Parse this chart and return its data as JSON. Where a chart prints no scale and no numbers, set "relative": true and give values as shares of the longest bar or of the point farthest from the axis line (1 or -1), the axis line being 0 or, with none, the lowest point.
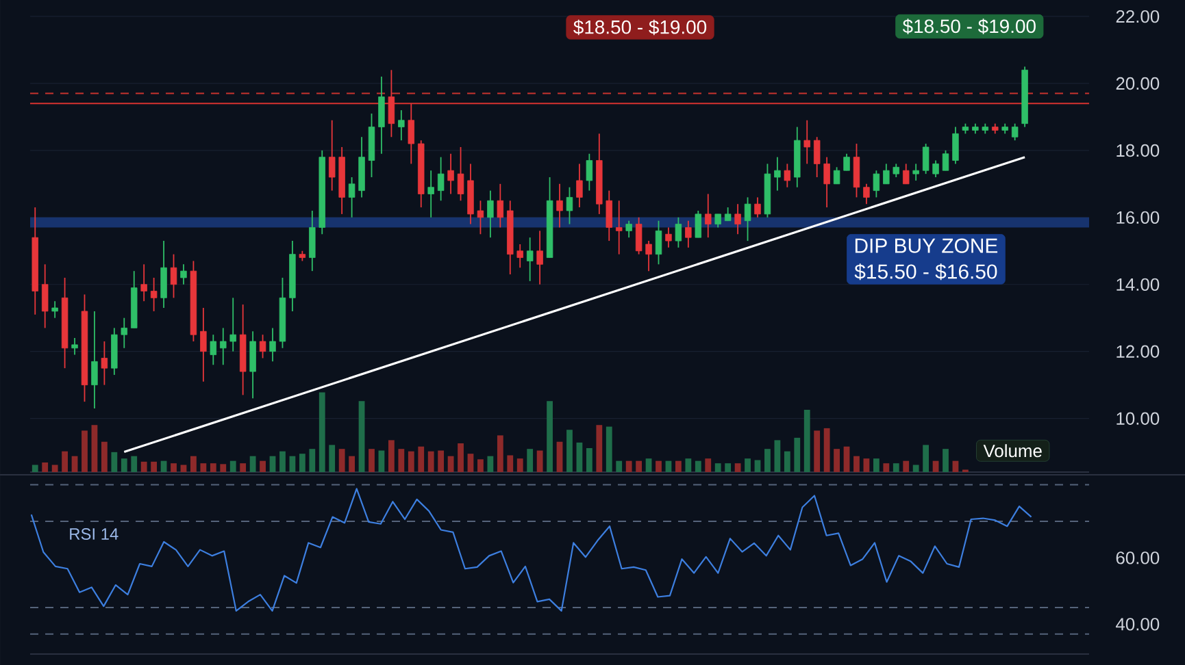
{
  "chart_data": [
    {
      "type": "candlestick",
      "categories": [
        null,
        null,
        null,
        null,
        null,
        null,
        null,
        null,
        null,
        null,
        null,
        null,
        null,
        null,
        null,
        null,
        null,
        null,
        null,
        null,
        null,
        null,
        null,
        null,
        null,
        null,
        null,
        null,
        null,
        null,
        null,
        null,
        null,
        null,
        null,
        null,
        null,
        null,
        null,
        null,
        null,
        null,
        null,
        null,
        null,
        null,
        null,
        null,
        null,
        null,
        null,
        null,
        null,
        null,
        null,
        null,
        null,
        null,
        null,
        null,
        null,
        null,
        null,
        null,
        null,
        null,
        null,
        null,
        null,
        null,
        null,
        null,
        null,
        null,
        null,
        null,
        null,
        null,
        null,
        null,
        null,
        null,
        null,
        null,
        null,
        null,
        null,
        null,
        null,
        null,
        null,
        null,
        null,
        null,
        null,
        null,
        null,
        null,
        null,
        null,
        null
      ],
      "ohlc": [
        [
          15.4,
          16.3,
          13.1,
          13.8
        ],
        [
          14.0,
          14.6,
          12.7,
          13.2
        ],
        [
          13.2,
          13.5,
          13.0,
          13.3
        ],
        [
          13.6,
          14.2,
          11.5,
          12.1
        ],
        [
          12.1,
          12.4,
          11.9,
          12.2
        ],
        [
          13.2,
          13.7,
          10.5,
          11.0
        ],
        [
          11.0,
          13.2,
          10.3,
          11.7
        ],
        [
          11.8,
          12.3,
          11.0,
          11.5
        ],
        [
          11.5,
          12.7,
          11.3,
          12.5
        ],
        [
          12.5,
          13.0,
          12.1,
          12.7
        ],
        [
          12.7,
          14.4,
          12.7,
          13.9
        ],
        [
          14.0,
          14.6,
          13.5,
          13.8
        ],
        [
          13.8,
          14.2,
          13.2,
          13.6
        ],
        [
          13.6,
          15.3,
          13.3,
          14.5
        ],
        [
          14.5,
          14.9,
          13.6,
          14.0
        ],
        [
          14.2,
          14.6,
          14.0,
          14.4
        ],
        [
          14.4,
          14.7,
          12.3,
          12.5
        ],
        [
          12.6,
          13.3,
          11.1,
          12.0
        ],
        [
          11.9,
          12.5,
          11.6,
          12.3
        ],
        [
          12.1,
          12.7,
          11.6,
          12.3
        ],
        [
          12.3,
          13.6,
          12.0,
          12.5
        ],
        [
          12.5,
          13.4,
          10.7,
          11.4
        ],
        [
          11.4,
          12.6,
          10.6,
          12.3
        ],
        [
          12.3,
          12.5,
          11.8,
          12.0
        ],
        [
          12.0,
          12.7,
          11.7,
          12.3
        ],
        [
          12.3,
          14.2,
          12.1,
          13.6
        ],
        [
          13.6,
          15.3,
          13.2,
          14.9
        ],
        [
          14.9,
          15.0,
          14.7,
          14.8
        ],
        [
          14.8,
          16.2,
          14.4,
          15.7
        ],
        [
          15.7,
          18.0,
          15.5,
          17.8
        ],
        [
          17.8,
          18.9,
          16.8,
          17.2
        ],
        [
          17.8,
          18.1,
          16.1,
          16.6
        ],
        [
          16.6,
          17.2,
          16.0,
          17.0
        ],
        [
          16.8,
          18.4,
          16.6,
          17.8
        ],
        [
          17.7,
          19.1,
          17.2,
          18.7
        ],
        [
          18.7,
          20.2,
          17.9,
          19.6
        ],
        [
          19.6,
          20.4,
          18.4,
          18.8
        ],
        [
          18.7,
          19.2,
          18.3,
          18.9
        ],
        [
          18.9,
          19.4,
          17.6,
          18.2
        ],
        [
          18.2,
          18.3,
          16.3,
          16.7
        ],
        [
          16.7,
          17.4,
          16.0,
          16.9
        ],
        [
          16.8,
          17.8,
          16.5,
          17.3
        ],
        [
          17.4,
          17.9,
          16.7,
          17.1
        ],
        [
          17.3,
          18.1,
          16.5,
          16.7
        ],
        [
          17.1,
          17.6,
          15.8,
          16.1
        ],
        [
          16.2,
          16.5,
          15.5,
          16.0
        ],
        [
          16.0,
          16.8,
          15.4,
          16.5
        ],
        [
          16.5,
          17.0,
          15.7,
          16.0
        ],
        [
          16.2,
          16.5,
          14.3,
          14.9
        ],
        [
          15.0,
          15.2,
          14.5,
          14.8
        ],
        [
          14.7,
          15.4,
          14.1,
          15.0
        ],
        [
          15.0,
          15.6,
          14.0,
          14.6
        ],
        [
          14.8,
          17.2,
          14.8,
          16.5
        ],
        [
          16.5,
          17.0,
          15.7,
          16.2
        ],
        [
          16.2,
          16.9,
          15.8,
          16.6
        ],
        [
          17.1,
          17.6,
          16.3,
          16.6
        ],
        [
          17.1,
          17.9,
          16.8,
          17.7
        ],
        [
          17.7,
          18.5,
          16.1,
          16.4
        ],
        [
          16.5,
          16.8,
          15.3,
          15.7
        ],
        [
          15.7,
          16.5,
          14.9,
          15.6
        ],
        [
          15.6,
          15.9,
          15.4,
          15.8
        ],
        [
          15.8,
          16.0,
          14.9,
          15.0
        ],
        [
          15.2,
          15.3,
          14.4,
          14.9
        ],
        [
          14.9,
          15.9,
          14.6,
          15.6
        ],
        [
          15.5,
          15.7,
          15.1,
          15.3
        ],
        [
          15.3,
          16.0,
          15.1,
          15.8
        ],
        [
          15.7,
          15.9,
          15.1,
          15.4
        ],
        [
          15.4,
          16.2,
          15.4,
          16.1
        ],
        [
          16.1,
          16.7,
          15.4,
          15.8
        ],
        [
          15.8,
          16.1,
          15.7,
          16.1
        ],
        [
          15.9,
          16.3,
          15.9,
          16.1
        ],
        [
          16.1,
          16.4,
          15.5,
          15.8
        ],
        [
          15.9,
          16.6,
          15.3,
          16.4
        ],
        [
          16.4,
          16.6,
          16.0,
          16.1
        ],
        [
          16.1,
          17.6,
          16.0,
          17.3
        ],
        [
          17.2,
          17.8,
          16.8,
          17.4
        ],
        [
          17.4,
          17.6,
          16.9,
          17.1
        ],
        [
          17.2,
          18.7,
          16.9,
          18.3
        ],
        [
          18.3,
          18.9,
          17.6,
          18.1
        ],
        [
          18.3,
          18.4,
          17.2,
          17.6
        ],
        [
          17.6,
          17.8,
          16.3,
          17.0
        ],
        [
          17.0,
          17.5,
          17.0,
          17.4
        ],
        [
          17.4,
          17.9,
          17.4,
          17.8
        ],
        [
          17.8,
          18.2,
          16.6,
          16.9
        ],
        [
          16.9,
          17.0,
          16.4,
          16.6
        ],
        [
          16.8,
          17.4,
          16.6,
          17.3
        ],
        [
          17.0,
          17.6,
          17.0,
          17.4
        ],
        [
          17.3,
          17.6,
          17.2,
          17.5
        ],
        [
          17.4,
          17.6,
          17.0,
          17.0
        ],
        [
          17.3,
          17.6,
          17.1,
          17.4
        ],
        [
          17.4,
          18.2,
          17.3,
          18.1
        ],
        [
          17.3,
          17.7,
          17.2,
          17.6
        ],
        [
          17.4,
          18.0,
          17.4,
          17.9
        ],
        [
          17.7,
          18.7,
          17.6,
          18.5
        ],
        [
          18.6,
          18.8,
          18.5,
          18.7
        ],
        [
          18.6,
          18.8,
          18.5,
          18.7
        ],
        [
          18.6,
          18.8,
          18.5,
          18.7
        ],
        [
          18.7,
          18.8,
          18.5,
          18.6
        ],
        [
          18.6,
          18.8,
          18.5,
          18.7
        ],
        [
          18.4,
          18.8,
          18.3,
          18.7
        ],
        [
          18.8,
          20.5,
          18.7,
          20.4
        ]
      ],
      "colors": [
        "#e8363a",
        "#e8363a",
        "#2fbf68",
        "#e8363a",
        "#2fbf68",
        "#e8363a",
        "#2fbf68",
        "#e8363a",
        "#2fbf68",
        "#2fbf68",
        "#2fbf68",
        "#e8363a",
        "#e8363a",
        "#2fbf68",
        "#e8363a",
        "#2fbf68",
        "#e8363a",
        "#e8363a",
        "#2fbf68",
        "#2fbf68",
        "#2fbf68",
        "#e8363a",
        "#2fbf68",
        "#e8363a",
        "#2fbf68",
        "#2fbf68",
        "#2fbf68",
        "#e8363a",
        "#2fbf68",
        "#2fbf68",
        "#e8363a",
        "#e8363a",
        "#2fbf68",
        "#2fbf68",
        "#2fbf68",
        "#2fbf68",
        "#e8363a",
        "#2fbf68",
        "#e8363a",
        "#e8363a",
        "#2fbf68",
        "#2fbf68",
        "#e8363a",
        "#e8363a",
        "#e8363a",
        "#e8363a",
        "#2fbf68",
        "#e8363a",
        "#e8363a",
        "#e8363a",
        "#2fbf68",
        "#e8363a",
        "#2fbf68",
        "#e8363a",
        "#2fbf68",
        "#e8363a",
        "#2fbf68",
        "#e8363a",
        "#e8363a",
        "#e8363a",
        "#2fbf68",
        "#e8363a",
        "#e8363a",
        "#2fbf68",
        "#e8363a",
        "#2fbf68",
        "#e8363a",
        "#2fbf68",
        "#e8363a",
        "#2fbf68",
        "#2fbf68",
        "#e8363a",
        "#2fbf68",
        "#e8363a",
        "#2fbf68",
        "#2fbf68",
        "#e8363a",
        "#2fbf68",
        "#e8363a",
        "#e8363a",
        "#e8363a",
        "#2fbf68",
        "#2fbf68",
        "#e8363a",
        "#e8363a",
        "#2fbf68",
        "#2fbf68",
        "#2fbf68",
        "#e8363a",
        "#2fbf68",
        "#2fbf68",
        "#2fbf68",
        "#2fbf68",
        "#2fbf68",
        "#2fbf68",
        "#2fbf68",
        "#2fbf68",
        "#e8363a",
        "#2fbf68",
        "#2fbf68",
        "#2fbf68"
      ],
      "series": [
        {
          "type": "line",
          "values": [
            null,
            null,
            null,
            null,
            null,
            null,
            null,
            null,
            null,
            9.0,
            null,
            null,
            null,
            null,
            null,
            null,
            null,
            null,
            null,
            null,
            null,
            null,
            null,
            null,
            null,
            null,
            null,
            null,
            null,
            null,
            null,
            null,
            null,
            null,
            null,
            null,
            null,
            null,
            null,
            null,
            null,
            null,
            null,
            null,
            null,
            null,
            null,
            null,
            null,
            null,
            null,
            null,
            null,
            null,
            null,
            null,
            null,
            null,
            null,
            null,
            null,
            null,
            null,
            null,
            null,
            null,
            null,
            null,
            null,
            null,
            null,
            null,
            null,
            null,
            null,
            null,
            null,
            null,
            null,
            null,
            null,
            null,
            null,
            null,
            null,
            null,
            null,
            null,
            null,
            null,
            null,
            null,
            null,
            null,
            null,
            null,
            null,
            null,
            null,
            null,
            17.8
          ],
          "color": "#ffffff"
        }
      ],
      "ylim": [
        8.4,
        22
      ],
      "yticks": [
        {
          "value": 10,
          "label": "10.00"
        },
        {
          "value": 12,
          "label": "12.00"
        },
        {
          "value": 14,
          "label": "14.00"
        },
        {
          "value": 16,
          "label": "16.00"
        },
        {
          "value": 18,
          "label": "18.00"
        },
        {
          "value": 20,
          "label": "20.00"
        },
        {
          "value": 22,
          "label": "22.00"
        }
      ],
      "tick_labels": "y",
      "grid": "y",
      "ref_lines": [
        {
          "axis": "y",
          "value": 19.7,
          "color": "#c8342f",
          "line_style": "dashed"
        },
        {
          "axis": "y",
          "value": 19.4,
          "color": "#d8332f",
          "line_style": "solid"
        }
      ],
      "bands": [
        {
          "axis": "y",
          "from": 15.7,
          "to": 16.0,
          "color": "#17336e"
        }
      ],
      "annotations": [
        "$18.50 - $19.00",
        "$18.50 - $19.00",
        "DIP BUY ZONE",
        "$15.50 - $16.50"
      ]
    },
    {
      "type": "bar",
      "relative": true,
      "categories": [
        null,
        null,
        null,
        null,
        null,
        null,
        null,
        null,
        null,
        null,
        null,
        null,
        null,
        null,
        null,
        null,
        null,
        null,
        null,
        null,
        null,
        null,
        null,
        null,
        null,
        null,
        null,
        null,
        null,
        null,
        null,
        null,
        null,
        null,
        null,
        null,
        null,
        null,
        null,
        null,
        null,
        null,
        null,
        null,
        null,
        null,
        null,
        null,
        null,
        null,
        null,
        null,
        null,
        null,
        null,
        null,
        null,
        null,
        null,
        null,
        null,
        null,
        null,
        null,
        null,
        null,
        null,
        null,
        null,
        null,
        null,
        null,
        null,
        null,
        null,
        null,
        null,
        null,
        null,
        null,
        null,
        null,
        null,
        null,
        null,
        null,
        null,
        null,
        null,
        null,
        null,
        null,
        null,
        null,
        null,
        null,
        null,
        null,
        null,
        null,
        null
      ],
      "values": [
        0.09,
        0.12,
        0.09,
        0.26,
        0.2,
        0.52,
        0.59,
        0.38,
        0.25,
        0.17,
        0.2,
        0.13,
        0.13,
        0.14,
        0.11,
        0.09,
        0.2,
        0.11,
        0.11,
        0.1,
        0.14,
        0.11,
        0.2,
        0.14,
        0.2,
        0.26,
        0.2,
        0.23,
        0.29,
        1.0,
        0.34,
        0.29,
        0.2,
        0.89,
        0.29,
        0.27,
        0.4,
        0.29,
        0.26,
        0.32,
        0.26,
        0.27,
        0.2,
        0.36,
        0.23,
        0.16,
        0.2,
        0.46,
        0.21,
        0.17,
        0.29,
        0.27,
        0.89,
        0.38,
        0.53,
        0.37,
        0.3,
        0.59,
        0.57,
        0.14,
        0.14,
        0.14,
        0.17,
        0.14,
        0.14,
        0.14,
        0.17,
        0.14,
        0.17,
        0.11,
        0.11,
        0.11,
        0.17,
        0.15,
        0.29,
        0.4,
        0.26,
        0.43,
        0.78,
        0.52,
        0.55,
        0.29,
        0.32,
        0.2,
        0.17,
        0.17,
        0.11,
        0.11,
        0.14,
        0.09,
        0.34,
        0.14,
        0.29,
        0.14,
        0.03,
        null,
        null,
        null,
        null,
        null,
        null
      ],
      "colors": [
        "#1f6e4a",
        "#8e2a2a",
        "#8e2a2a",
        "#8e2a2a",
        "#8e2a2a",
        "#8e2a2a",
        "#8e2a2a",
        "#8e2a2a",
        "#1f6e4a",
        "#1f6e4a",
        "#1f6e4a",
        "#8e2a2a",
        "#8e2a2a",
        "#1f6e4a",
        "#8e2a2a",
        "#8e2a2a",
        "#8e2a2a",
        "#8e2a2a",
        "#8e2a2a",
        "#8e2a2a",
        "#1f6e4a",
        "#8e2a2a",
        "#1f6e4a",
        "#8e2a2a",
        "#1f6e4a",
        "#1f6e4a",
        "#1f6e4a",
        "#1f6e4a",
        "#1f6e4a",
        "#1f6e4a",
        "#1f6e4a",
        "#8e2a2a",
        "#8e2a2a",
        "#1f6e4a",
        "#8e2a2a",
        "#1f6e4a",
        "#8e2a2a",
        "#8e2a2a",
        "#8e2a2a",
        "#8e2a2a",
        "#8e2a2a",
        "#8e2a2a",
        "#8e2a2a",
        "#8e2a2a",
        "#8e2a2a",
        "#8e2a2a",
        "#1f6e4a",
        "#8e2a2a",
        "#8e2a2a",
        "#8e2a2a",
        "#1f6e4a",
        "#8e2a2a",
        "#1f6e4a",
        "#8e2a2a",
        "#1f6e4a",
        "#1f6e4a",
        "#1f6e4a",
        "#8e2a2a",
        "#1f6e4a",
        "#1f6e4a",
        "#8e2a2a",
        "#8e2a2a",
        "#1f6e4a",
        "#8e2a2a",
        "#1f6e4a",
        "#8e2a2a",
        "#1f6e4a",
        "#1f6e4a",
        "#8e2a2a",
        "#1f6e4a",
        "#1f6e4a",
        "#8e2a2a",
        "#1f6e4a",
        "#1f6e4a",
        "#1f6e4a",
        "#1f6e4a",
        "#1f6e4a",
        "#1f6e4a",
        "#1f6e4a",
        "#8e2a2a",
        "#8e2a2a",
        "#8e2a2a",
        "#8e2a2a",
        "#8e2a2a",
        "#8e2a2a",
        "#1f6e4a",
        "#8e2a2a",
        "#1f6e4a",
        "#8e2a2a",
        "#1f6e4a",
        "#1f6e4a",
        "#8e2a2a",
        "#1f6e4a",
        "#8e2a2a",
        "#8e2a2a",
        "#8e2a2a",
        "#8e2a2a",
        "#8e2a2a",
        "#8e2a2a",
        "#8e2a2a",
        "#8e2a2a"
      ],
      "annotations": [
        "Volume"
      ]
    },
    {
      "type": "line",
      "categories": [
        null,
        null,
        null,
        null,
        null,
        null,
        null,
        null,
        null,
        null,
        null,
        null,
        null,
        null,
        null,
        null,
        null,
        null,
        null,
        null,
        null,
        null,
        null,
        null,
        null,
        null,
        null,
        null,
        null,
        null,
        null,
        null,
        null,
        null,
        null,
        null,
        null,
        null,
        null,
        null,
        null,
        null,
        null,
        null,
        null,
        null,
        null,
        null,
        null,
        null,
        null,
        null,
        null,
        null,
        null,
        null,
        null,
        null,
        null,
        null,
        null,
        null,
        null,
        null,
        null,
        null,
        null,
        null,
        null,
        null,
        null,
        null,
        null,
        null,
        null,
        null,
        null,
        null,
        null,
        null,
        null,
        null,
        null,
        null
      ],
      "values": [
        73.0,
        61.7,
        57.4,
        56.7,
        49.6,
        51.1,
        45.4,
        51.8,
        48.9,
        58.2,
        57.4,
        64.8,
        62.4,
        57.4,
        62.4,
        60.6,
        62.0,
        44.0,
        46.8,
        48.9,
        44.0,
        54.6,
        52.4,
        64.5,
        63.1,
        72.3,
        70.5,
        80.8,
        70.8,
        70.2,
        76.9,
        71.6,
        77.6,
        74.1,
        68.4,
        67.7,
        56.7,
        57.2,
        60.6,
        62.0,
        52.5,
        57.4,
        46.8,
        47.5,
        44.0,
        64.5,
        60.2,
        65.2,
        69.5,
        56.7,
        57.2,
        56.3,
        48.2,
        48.6,
        59.6,
        55.4,
        60.3,
        55.4,
        65.8,
        61.8,
        64.4,
        60.6,
        66.7,
        62.4,
        75.2,
        78.7,
        66.7,
        67.4,
        57.7,
        59.6,
        64.5,
        52.7,
        60.6,
        58.9,
        55.4,
        63.5,
        58.2,
        57.2,
        71.6,
        71.9,
        71.3,
        69.5,
        75.5,
        72.3
      ],
      "color": "#3d7fe0",
      "ylim": [
        31,
        85
      ],
      "yticks": [
        {
          "value": 40,
          "label": "40.00"
        },
        {
          "value": 60,
          "label": "60.00"
        }
      ],
      "tick_labels": "y",
      "ref_lines": [
        {
          "axis": "y",
          "value": 82,
          "color": "#55637a",
          "line_style": "dashed"
        },
        {
          "axis": "y",
          "value": 71,
          "color": "#55637a",
          "line_style": "dashed"
        },
        {
          "axis": "y",
          "value": 45,
          "color": "#55637a",
          "line_style": "dashed"
        },
        {
          "axis": "y",
          "value": 37,
          "color": "#55637a",
          "line_style": "dashed"
        }
      ],
      "annotations": [
        "RSI 14"
      ]
    }
  ]
}
